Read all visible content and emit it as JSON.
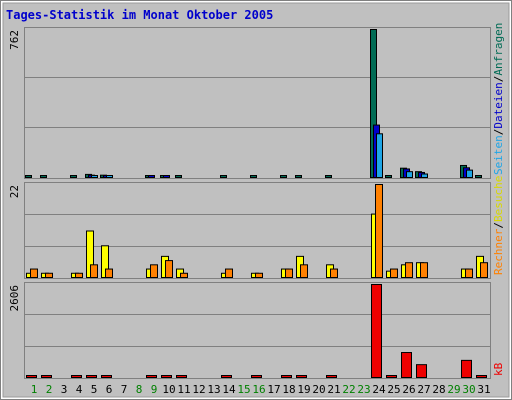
{
  "title": "Tages-Statistik im Monat Oktober 2005",
  "colors": {
    "background": "#c0c0c0",
    "grid": "#808080",
    "title": "#0000cc",
    "weekday_label": "#000000",
    "weekend_label": "#008000",
    "separator": "#000000"
  },
  "chart_data": [
    {
      "type": "bar",
      "panel": "requests",
      "ylim": [
        0,
        762
      ],
      "tick_label": "762",
      "x": [
        1,
        2,
        3,
        4,
        5,
        6,
        7,
        8,
        9,
        10,
        11,
        12,
        13,
        14,
        15,
        16,
        17,
        18,
        19,
        20,
        21,
        22,
        23,
        24,
        25,
        26,
        27,
        28,
        29,
        30,
        31
      ],
      "series": [
        {
          "name": "Anfragen",
          "color": "#006b54",
          "values": [
            8,
            8,
            0,
            8,
            16,
            12,
            0,
            0,
            10,
            10,
            8,
            0,
            0,
            8,
            0,
            8,
            0,
            8,
            10,
            0,
            8,
            0,
            0,
            762,
            8,
            48,
            30,
            0,
            0,
            62,
            10
          ]
        },
        {
          "name": "Dateien",
          "color": "#0000cc",
          "values": [
            0,
            0,
            0,
            0,
            12,
            10,
            0,
            0,
            6,
            8,
            0,
            0,
            0,
            0,
            0,
            0,
            0,
            0,
            0,
            0,
            0,
            0,
            0,
            270,
            0,
            44,
            26,
            0,
            0,
            50,
            0
          ]
        },
        {
          "name": "Seiten",
          "color": "#1ea5e6",
          "values": [
            0,
            0,
            0,
            0,
            10,
            8,
            0,
            0,
            0,
            0,
            0,
            0,
            0,
            0,
            0,
            0,
            0,
            0,
            0,
            0,
            0,
            0,
            0,
            225,
            0,
            30,
            18,
            0,
            0,
            38,
            0
          ]
        }
      ]
    },
    {
      "type": "bar",
      "panel": "visits",
      "ylim": [
        0,
        22
      ],
      "tick_label": "22",
      "x": [
        1,
        2,
        3,
        4,
        5,
        6,
        7,
        8,
        9,
        10,
        11,
        12,
        13,
        14,
        15,
        16,
        17,
        18,
        19,
        20,
        21,
        22,
        23,
        24,
        25,
        26,
        27,
        28,
        29,
        30,
        31
      ],
      "series": [
        {
          "name": "Besuche",
          "color": "#ffff00",
          "values": [
            1,
            1,
            0,
            1,
            11,
            7.5,
            0,
            0,
            2,
            5,
            2,
            0,
            0,
            1,
            0,
            1,
            0,
            2,
            5,
            0,
            3,
            0,
            0,
            15,
            1.5,
            3,
            3.5,
            0,
            0,
            2,
            5
          ]
        },
        {
          "name": "Rechner",
          "color": "#ff8000",
          "values": [
            2,
            1,
            0,
            1,
            3,
            2,
            0,
            0,
            3,
            4,
            1,
            0,
            0,
            2,
            0,
            1,
            0,
            2,
            3,
            0,
            2,
            0,
            0,
            22,
            2,
            3.5,
            3.5,
            0,
            0,
            2,
            3.5
          ]
        }
      ]
    },
    {
      "type": "bar",
      "panel": "kbytes",
      "ylim": [
        0,
        2606
      ],
      "tick_label": "2606",
      "x": [
        1,
        2,
        3,
        4,
        5,
        6,
        7,
        8,
        9,
        10,
        11,
        12,
        13,
        14,
        15,
        16,
        17,
        18,
        19,
        20,
        21,
        22,
        23,
        24,
        25,
        26,
        27,
        28,
        29,
        30,
        31
      ],
      "series": [
        {
          "name": "kB",
          "color": "#ee0000",
          "values": [
            20,
            20,
            0,
            20,
            20,
            20,
            0,
            0,
            20,
            20,
            20,
            0,
            0,
            20,
            0,
            20,
            0,
            20,
            20,
            0,
            20,
            0,
            0,
            2606,
            20,
            700,
            360,
            0,
            0,
            480,
            20
          ]
        }
      ]
    }
  ],
  "x_axis": {
    "labels": [
      "1",
      "2",
      "3",
      "4",
      "5",
      "6",
      "7",
      "8",
      "9",
      "10",
      "11",
      "12",
      "13",
      "14",
      "15",
      "16",
      "17",
      "18",
      "19",
      "20",
      "21",
      "22",
      "23",
      "24",
      "25",
      "26",
      "27",
      "28",
      "29",
      "30",
      "31"
    ],
    "weekend_days": [
      1,
      2,
      8,
      9,
      15,
      16,
      22,
      23,
      29,
      30
    ]
  },
  "separator": "/"
}
